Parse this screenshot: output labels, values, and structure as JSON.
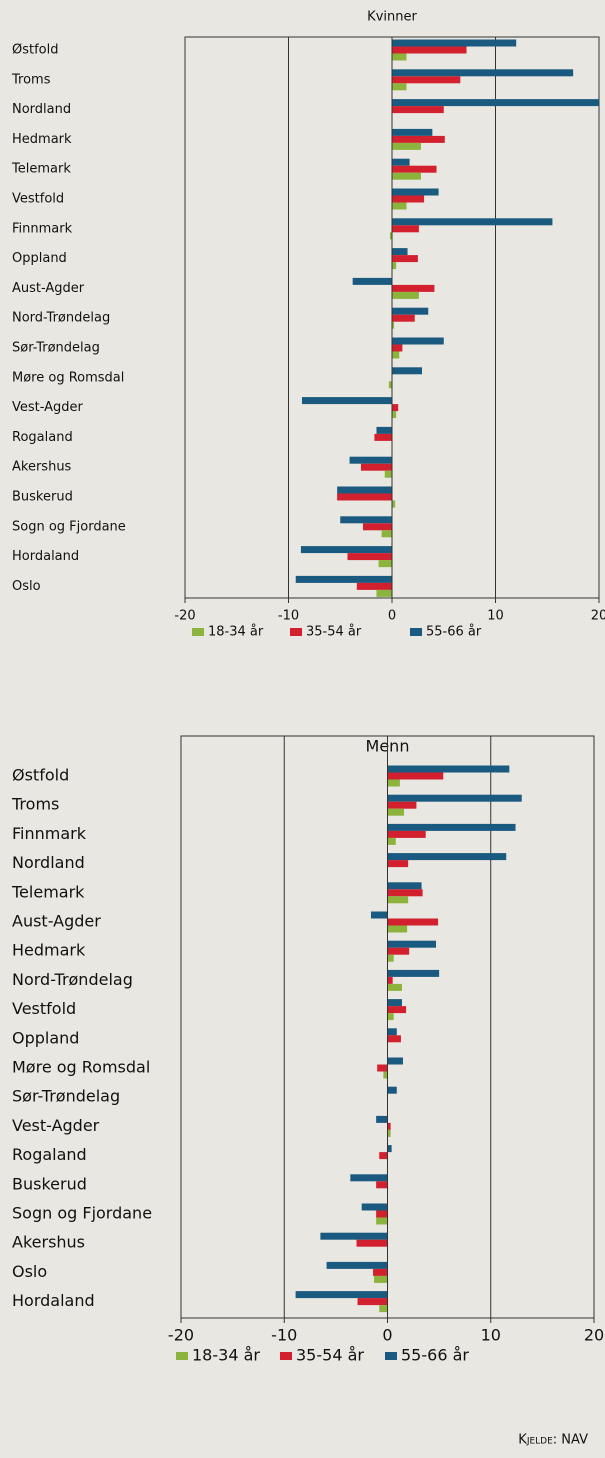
{
  "chart_data": [
    {
      "type": "bar",
      "title": "Kvinner",
      "categories": [
        "Østfold",
        "Troms",
        "Nordland",
        "Hedmark",
        "Telemark",
        "Vestfold",
        "Finnmark",
        "Oppland",
        "Aust-Agder",
        "Nord-Trøndelag",
        "Sør-Trøndelag",
        "Møre og Romsdal",
        "Vest-Agder",
        "Rogaland",
        "Akershus",
        "Buskerud",
        "Sogn og Fjordane",
        "Hordaland",
        "Oslo"
      ],
      "series": [
        {
          "name": "55-66 år",
          "color": "#1b5a80",
          "values": [
            12.0,
            17.5,
            20,
            3.9,
            1.7,
            4.5,
            15.5,
            1.5,
            -3.8,
            3.5,
            5.0,
            2.9,
            -8.7,
            -1.5,
            -4.1,
            -5.3,
            -5.0,
            -8.8,
            -9.3
          ]
        },
        {
          "name": "35-54 år",
          "color": "#d2202e",
          "values": [
            7.2,
            6.6,
            5.0,
            5.1,
            4.3,
            3.1,
            2.6,
            2.5,
            4.1,
            2.2,
            1.0,
            0,
            0.6,
            -1.7,
            -3.0,
            -5.3,
            -2.8,
            -4.3,
            -3.4
          ]
        },
        {
          "name": "18-34 år",
          "color": "#8cb43c",
          "values": [
            1.4,
            1.4,
            0,
            2.8,
            2.8,
            1.4,
            -0.2,
            0.4,
            2.6,
            0.2,
            0.7,
            -0.3,
            0.4,
            0,
            -0.7,
            0.3,
            -1.0,
            -1.3,
            -1.5
          ]
        }
      ],
      "xlim": [
        -20,
        20
      ],
      "xticks": [
        -20,
        -10,
        0,
        10,
        20
      ],
      "grid": true
    },
    {
      "type": "bar",
      "title": "Menn",
      "categories": [
        "Østfold",
        "Troms",
        "Finnmark",
        "Nordland",
        "Telemark",
        "Aust-Agder",
        "Hedmark",
        "Nord-Trøndelag",
        "Vestfold",
        "Oppland",
        "Møre og Romsdal",
        "Sør-Trøndelag",
        "Vest-Agder",
        "Rogaland",
        "Buskerud",
        "Sogn og Fjordane",
        "Akershus",
        "Oslo",
        "Hordaland"
      ],
      "series": [
        {
          "name": "55-66 år",
          "color": "#1b5a80",
          "values": [
            11.8,
            13.0,
            12.4,
            11.5,
            3.3,
            -1.6,
            4.7,
            5.0,
            1.4,
            0.9,
            1.5,
            0.9,
            -1.1,
            0.4,
            -3.6,
            -2.5,
            -6.5,
            -5.9,
            -8.9
          ]
        },
        {
          "name": "35-54 år",
          "color": "#d2202e",
          "values": [
            5.4,
            2.8,
            3.7,
            2.0,
            3.4,
            4.9,
            2.1,
            0.5,
            1.8,
            1.3,
            -1.0,
            0,
            0.3,
            -0.8,
            -1.1,
            -1.1,
            -3.0,
            -1.4,
            -2.9
          ]
        },
        {
          "name": "18-34 år",
          "color": "#8cb43c",
          "values": [
            1.2,
            1.6,
            0.8,
            0,
            2.0,
            1.9,
            0.6,
            1.4,
            0.6,
            0,
            -0.4,
            0,
            0.3,
            0,
            0,
            -1.1,
            0,
            -1.3,
            -0.8
          ]
        }
      ],
      "xlim": [
        -20,
        20
      ],
      "xticks": [
        -20,
        -10,
        0,
        10,
        20
      ],
      "grid": true
    }
  ],
  "source": "Kjelde: NAV"
}
